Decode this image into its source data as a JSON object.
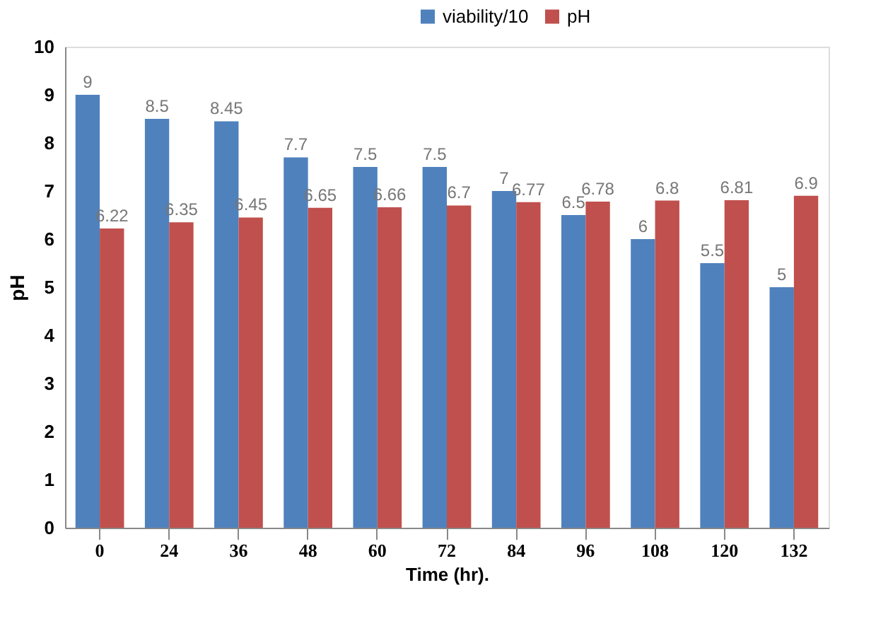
{
  "chart_data": {
    "type": "bar",
    "xlabel": "Time (hr).",
    "ylabel": "pH",
    "categories": [
      "0",
      "24",
      "36",
      "48",
      "60",
      "72",
      "84",
      "96",
      "108",
      "120",
      "132"
    ],
    "series": [
      {
        "name": "viability/10",
        "color": "#4f81bd",
        "values": [
          9,
          8.5,
          8.45,
          7.7,
          7.5,
          7.5,
          7,
          6.5,
          6,
          5.5,
          5
        ]
      },
      {
        "name": "pH",
        "color": "#c0504d",
        "values": [
          6.22,
          6.35,
          6.45,
          6.65,
          6.66,
          6.7,
          6.77,
          6.78,
          6.8,
          6.81,
          6.9
        ]
      }
    ],
    "ylim": [
      0,
      10
    ],
    "yticks": [
      0,
      1,
      2,
      3,
      4,
      5,
      6,
      7,
      8,
      9,
      10
    ],
    "data_labels": true,
    "legend": "top right",
    "grid": false
  }
}
